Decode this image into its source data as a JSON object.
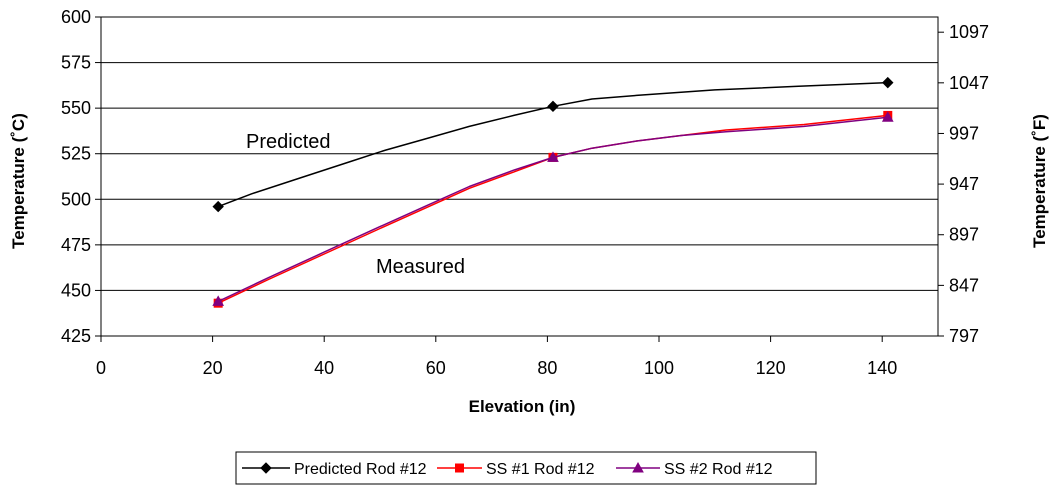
{
  "chart_data": {
    "type": "line",
    "title": "",
    "xlabel": "Elevation (in)",
    "ylabel": "Temperature (˚C)",
    "y2label": "Temperature (˚F)",
    "xlim": [
      0,
      150
    ],
    "ylim": [
      425,
      600
    ],
    "y2lim": [
      797,
      1112
    ],
    "xticks": [
      0,
      20,
      40,
      60,
      80,
      100,
      120,
      140
    ],
    "yticks": [
      425,
      450,
      475,
      500,
      525,
      550,
      575,
      600
    ],
    "y2ticks": [
      797,
      847,
      897,
      947,
      997,
      1047,
      1097
    ],
    "grid": "horizontal",
    "legend_position": "bottom",
    "annotations": [
      {
        "text": "Predicted",
        "x": 38,
        "y": 531
      },
      {
        "text": "Measured",
        "x": 59,
        "y": 465
      }
    ],
    "series": [
      {
        "name": "Predicted Rod #12",
        "color": "#000000",
        "marker": "diamond",
        "markers": [
          [
            21,
            496
          ],
          [
            81,
            551
          ],
          [
            141,
            564
          ]
        ],
        "x": [
          21,
          27,
          36,
          45,
          51,
          58,
          66,
          74,
          81,
          88,
          96,
          110,
          125,
          141
        ],
        "y": [
          496,
          503,
          512,
          521,
          527,
          533,
          540,
          546,
          551,
          555,
          557,
          560,
          562,
          564
        ]
      },
      {
        "name": "SS #1 Rod #12",
        "color": "#ff0000",
        "marker": "square",
        "markers": [
          [
            21,
            443
          ],
          [
            81,
            523
          ],
          [
            141,
            546
          ]
        ],
        "x": [
          21,
          30,
          40,
          50,
          58,
          66,
          74,
          81,
          88,
          96,
          104,
          112,
          126,
          141
        ],
        "y": [
          443,
          456,
          470,
          484,
          495,
          506,
          515,
          523,
          528,
          532,
          535,
          538,
          541,
          546
        ]
      },
      {
        "name": "SS #2 Rod #12",
        "color": "#800080",
        "marker": "triangle",
        "markers": [
          [
            21,
            444
          ],
          [
            81,
            523
          ],
          [
            141,
            545
          ]
        ],
        "x": [
          21,
          30,
          40,
          50,
          58,
          66,
          74,
          81,
          88,
          96,
          104,
          112,
          126,
          141
        ],
        "y": [
          444,
          457,
          471,
          485,
          496,
          507,
          516,
          523,
          528,
          532,
          535,
          537,
          540,
          545
        ]
      }
    ]
  }
}
